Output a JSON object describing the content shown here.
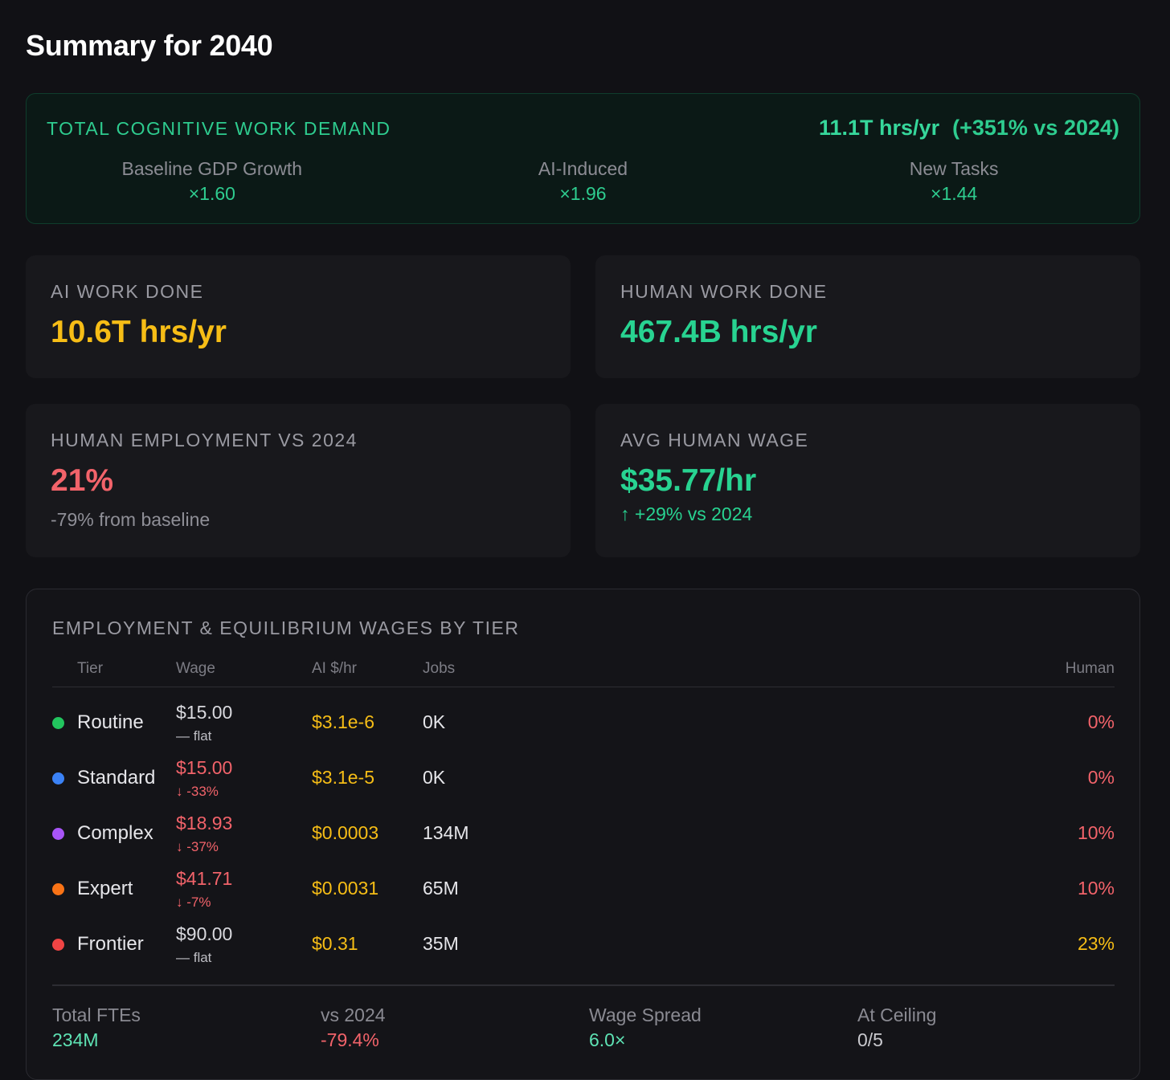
{
  "page_title": "Summary for 2040",
  "demand": {
    "label": "TOTAL COGNITIVE WORK DEMAND",
    "total": "11.1T hrs/yr",
    "change": "(+351% vs 2024)",
    "factors": [
      {
        "name": "Baseline GDP Growth",
        "value": "×1.60"
      },
      {
        "name": "AI-Induced",
        "value": "×1.96"
      },
      {
        "name": "New Tasks",
        "value": "×1.44"
      }
    ]
  },
  "cards": {
    "ai_work": {
      "label": "AI WORK DONE",
      "value": "10.6T hrs/yr"
    },
    "human_work": {
      "label": "HUMAN WORK DONE",
      "value": "467.4B hrs/yr"
    },
    "employment": {
      "label": "HUMAN EMPLOYMENT VS 2024",
      "value": "21%",
      "sub": "-79% from baseline"
    },
    "wage": {
      "label": "AVG HUMAN WAGE",
      "value": "$35.77/hr",
      "sub": "↑ +29% vs 2024"
    }
  },
  "table": {
    "title": "EMPLOYMENT & EQUILIBRIUM WAGES BY TIER",
    "headers": {
      "tier": "Tier",
      "wage": "Wage",
      "ai": "AI $/hr",
      "jobs": "Jobs",
      "human": "Human"
    },
    "rows": [
      {
        "tier": "Routine",
        "dot_color": "#22c55e",
        "wage": "$15.00",
        "wage_delta": "— flat",
        "ai": "$3.1e-6",
        "jobs": "0K",
        "human": "0%"
      },
      {
        "tier": "Standard",
        "dot_color": "#3b82f6",
        "wage": "$15.00",
        "wage_delta": "↓ -33%",
        "ai": "$3.1e-5",
        "jobs": "0K",
        "human": "0%"
      },
      {
        "tier": "Complex",
        "dot_color": "#a855f7",
        "wage": "$18.93",
        "wage_delta": "↓ -37%",
        "ai": "$0.0003",
        "jobs": "134M",
        "human": "10%"
      },
      {
        "tier": "Expert",
        "dot_color": "#f97316",
        "wage": "$41.71",
        "wage_delta": "↓ -7%",
        "ai": "$0.0031",
        "jobs": "65M",
        "human": "10%"
      },
      {
        "tier": "Frontier",
        "dot_color": "#ef4444",
        "wage": "$90.00",
        "wage_delta": "— flat",
        "ai": "$0.31",
        "jobs": "35M",
        "human": "23%"
      }
    ],
    "footer": [
      {
        "label": "Total FTEs",
        "value": "234M"
      },
      {
        "label": "vs 2024",
        "value": "-79.4%"
      },
      {
        "label": "Wage Spread",
        "value": "6.0×"
      },
      {
        "label": "At Ceiling",
        "value": "0/5"
      }
    ]
  },
  "colors": {
    "accent_green": "#28d391",
    "accent_yellow": "#f6bd16",
    "accent_red": "#f2636a",
    "background": "#111115"
  }
}
